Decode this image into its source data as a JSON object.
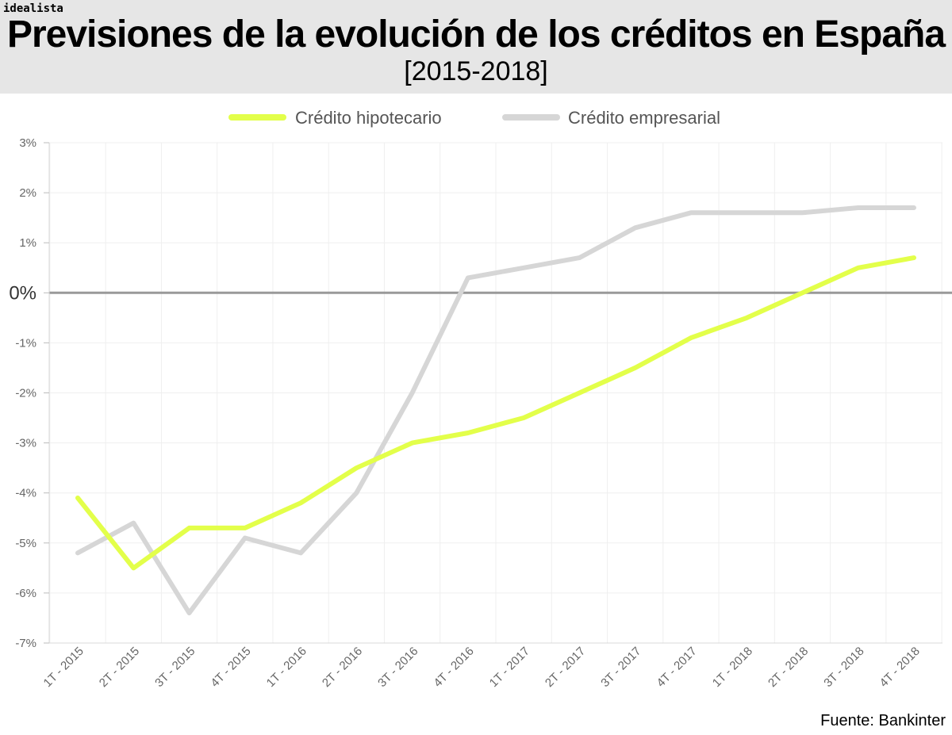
{
  "brand": "idealista",
  "header": {
    "title": "Previsiones de la evolución de los créditos en España",
    "subtitle": "[2015-2018]"
  },
  "footer": {
    "source": "Fuente: Bankinter"
  },
  "colors": {
    "hipotecario": "#e3ff4a",
    "empresarial": "#d6d6d6",
    "zero_line": "#999999",
    "grid": "#efefef"
  },
  "chart_data": {
    "type": "line",
    "title": "Previsiones de la evolución de los créditos en España",
    "subtitle": "[2015-2018]",
    "xlabel": "",
    "ylabel": "",
    "ylim": [
      -7,
      3
    ],
    "y_ticks": [
      {
        "value": 3,
        "label": "3%"
      },
      {
        "value": 2,
        "label": "2%"
      },
      {
        "value": 1,
        "label": "1%"
      },
      {
        "value": 0,
        "label": "0%"
      },
      {
        "value": -1,
        "label": "-1%"
      },
      {
        "value": -2,
        "label": "-2%"
      },
      {
        "value": -3,
        "label": "-3%"
      },
      {
        "value": -4,
        "label": "-4%"
      },
      {
        "value": -5,
        "label": "-5%"
      },
      {
        "value": -6,
        "label": "-6%"
      },
      {
        "value": -7,
        "label": "-7%"
      }
    ],
    "categories": [
      "1T - 2015",
      "2T - 2015",
      "3T - 2015",
      "4T - 2015",
      "1T - 2016",
      "2T - 2016",
      "3T - 2016",
      "4T - 2016",
      "1T - 2017",
      "2T - 2017",
      "3T - 2017",
      "4T - 2017",
      "1T - 2018",
      "2T - 2018",
      "3T - 2018",
      "4T - 2018"
    ],
    "legend_position": "top-center",
    "series": [
      {
        "name": "Crédito hipotecario",
        "color": "#e3ff4a",
        "values": [
          -4.1,
          -5.5,
          -4.7,
          -4.7,
          -4.2,
          -3.5,
          -3.0,
          -2.8,
          -2.5,
          -2.0,
          -1.5,
          -0.9,
          -0.5,
          0.0,
          0.5,
          0.7
        ]
      },
      {
        "name": "Crédito empresarial",
        "color": "#d6d6d6",
        "values": [
          -5.2,
          -4.6,
          -6.4,
          -4.9,
          -5.2,
          -4.0,
          -2.0,
          0.3,
          0.5,
          0.7,
          1.3,
          1.6,
          1.6,
          1.6,
          1.7,
          1.7
        ]
      }
    ]
  }
}
